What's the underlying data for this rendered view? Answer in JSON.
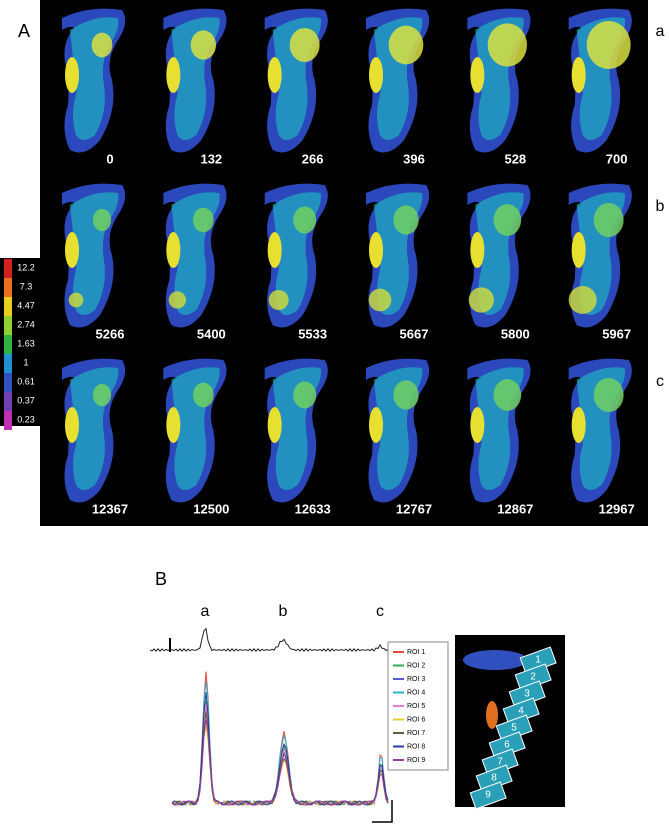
{
  "panel_a": {
    "label": "A",
    "rows": [
      {
        "label": "a",
        "frames": [
          0,
          132,
          266,
          396,
          528,
          700
        ]
      },
      {
        "label": "b",
        "frames": [
          5266,
          5400,
          5533,
          5667,
          5800,
          5967
        ]
      },
      {
        "label": "c",
        "frames": [
          12367,
          12500,
          12633,
          12767,
          12867,
          12967
        ]
      }
    ],
    "colorbar": [
      12.2,
      7.3,
      4.47,
      2.74,
      1.63,
      1,
      0.61,
      0.37,
      0.23
    ]
  },
  "panel_b": {
    "label": "B",
    "peaks": [
      "a",
      "b",
      "c"
    ],
    "legend": [
      {
        "name": "ROI 1",
        "color": "#e8453c"
      },
      {
        "name": "ROI 2",
        "color": "#2fa84f"
      },
      {
        "name": "ROI 3",
        "color": "#5a5ad6"
      },
      {
        "name": "ROI 4",
        "color": "#2bb3c6"
      },
      {
        "name": "ROI 5",
        "color": "#e87ad8"
      },
      {
        "name": "ROI 6",
        "color": "#e0d02a"
      },
      {
        "name": "ROI 7",
        "color": "#6b5a3a"
      },
      {
        "name": "ROI 8",
        "color": "#2a3a9a"
      },
      {
        "name": "ROI 9",
        "color": "#a03aa0"
      }
    ],
    "regions": [
      "1",
      "2",
      "3",
      "4",
      "5",
      "6",
      "7",
      "8",
      "9"
    ]
  }
}
